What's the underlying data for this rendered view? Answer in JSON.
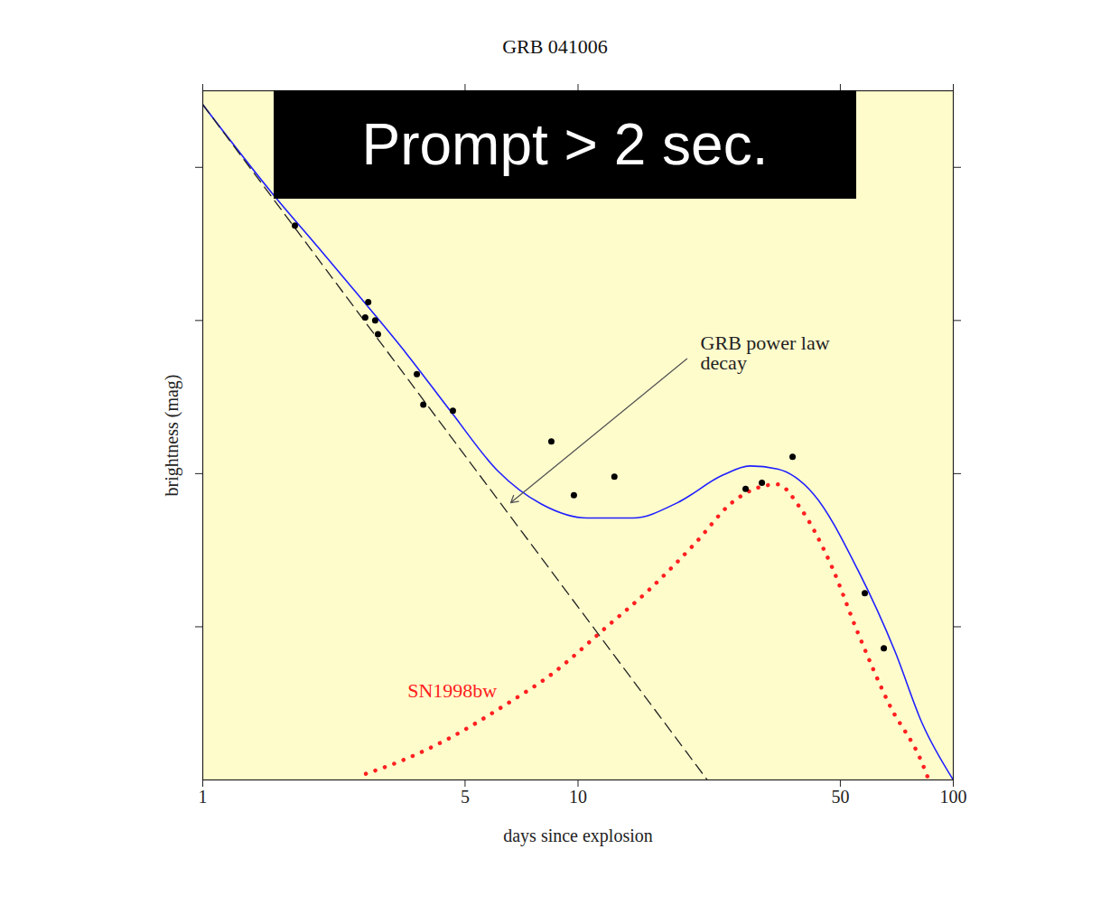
{
  "chart_data": {
    "type": "line",
    "title": "GRB 041006",
    "banner": "Prompt > 2 sec.",
    "x_label": "days since explosion",
    "y_label": "brightness (mag)",
    "log": "x",
    "xlim": [
      1,
      100
    ],
    "xticks": [
      1,
      5,
      10,
      50,
      100
    ],
    "ylim": [
      0,
      4.5
    ],
    "yticks": [
      1,
      2,
      3,
      4
    ],
    "tick_labels": "x",
    "grid": false,
    "series": [
      {
        "type": "line",
        "color": "#1f1fff",
        "line_style": "solid",
        "x": [
          1,
          1.52,
          2.01,
          2.65,
          3.5,
          4.6,
          6.1,
          8.0,
          10.6,
          14.0,
          18.4,
          24.3,
          28.7,
          34,
          42.3,
          55.7,
          69.9,
          82.6,
          100
        ],
        "values": [
          4.41,
          3.84,
          3.49,
          3.14,
          2.78,
          2.4,
          2.02,
          1.8,
          1.71,
          1.71,
          1.81,
          1.99,
          2.05,
          2.03,
          1.87,
          1.37,
          0.84,
          0.37,
          0
        ]
      },
      {
        "name": "GRB power law decay",
        "type": "line",
        "color": "#222222",
        "line_style": "dashed",
        "x": [
          1,
          22.1
        ],
        "values": [
          4.41,
          0
        ],
        "label_at": [
          21.2,
          2.9
        ],
        "arrow_from": [
          19.5,
          2.75
        ],
        "arrow_to": [
          6.62,
          1.81
        ]
      },
      {
        "name": "SN1998bw",
        "type": "line",
        "color": "#ff2020",
        "line_style": "dotted",
        "x": [
          2.72,
          3.5,
          4.6,
          6.4,
          8.5,
          11.8,
          15.6,
          20.6,
          25.7,
          29.5,
          34.0,
          39.0,
          47.3,
          55.7,
          67.6,
          82.6,
          86
        ],
        "values": [
          0.04,
          0.14,
          0.28,
          0.49,
          0.69,
          0.99,
          1.25,
          1.55,
          1.81,
          1.9,
          1.93,
          1.78,
          1.4,
          0.96,
          0.49,
          0.11,
          0
        ],
        "label_at": [
          4.62,
          0.58
        ]
      },
      {
        "type": "scatter",
        "color": "#000000",
        "marker": "circle",
        "x": [
          1.76,
          2.76,
          2.71,
          2.88,
          2.93,
          3.72,
          3.87,
          4.64,
          8.49,
          9.75,
          12.5,
          27.96,
          30.9,
          37.3,
          58.1,
          65.3
        ],
        "values": [
          3.62,
          3.12,
          3.02,
          3.0,
          2.91,
          2.65,
          2.45,
          2.41,
          2.21,
          1.86,
          1.98,
          1.9,
          1.94,
          2.11,
          1.22,
          0.86
        ]
      }
    ]
  }
}
